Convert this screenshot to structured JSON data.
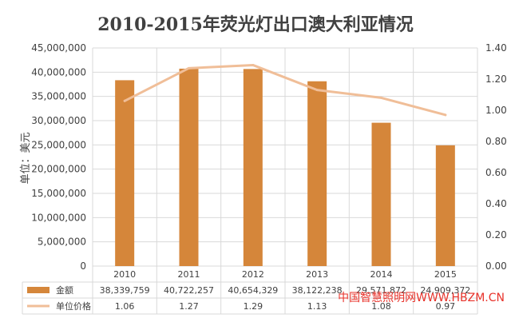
{
  "chart_data": {
    "type": "bar+line",
    "title": "2010-2015年荧光灯出口澳大利亚情况",
    "ylabel": "单位：美元",
    "categories": [
      "2010",
      "2011",
      "2012",
      "2013",
      "2014",
      "2015"
    ],
    "y_left": {
      "min": 0,
      "max": 45000000,
      "ticks": [
        "0",
        "5,000,000",
        "10,000,000",
        "15,000,000",
        "20,000,000",
        "25,000,000",
        "30,000,000",
        "35,000,000",
        "40,000,000",
        "45,000,000"
      ]
    },
    "y_right": {
      "min": 0,
      "max": 1.4,
      "ticks": [
        "0.00",
        "0.20",
        "0.40",
        "0.60",
        "0.80",
        "1.00",
        "1.20",
        "1.40"
      ]
    },
    "grid": true,
    "series": [
      {
        "name": "金额",
        "type": "bar",
        "axis": "left",
        "values": [
          38339759,
          40722257,
          40654329,
          38122238,
          29571872,
          24909372
        ],
        "labels": [
          "38,339,759",
          "40,722,257",
          "40,654,329",
          "38,122,238",
          "29,571,872",
          "24,909,372"
        ]
      },
      {
        "name": "单位价格",
        "type": "line",
        "axis": "right",
        "values": [
          1.06,
          1.27,
          1.29,
          1.13,
          1.08,
          0.97
        ],
        "labels": [
          "1.06",
          "1.27",
          "1.29",
          "1.13",
          "1.08",
          "0.97"
        ]
      }
    ],
    "colors": {
      "bar": "#D5863A",
      "line": "#F0BE98",
      "grid": "#D9D9D9",
      "text": "#404040"
    }
  },
  "watermark": "中国智慧照明网WWW.HBZM.CN"
}
